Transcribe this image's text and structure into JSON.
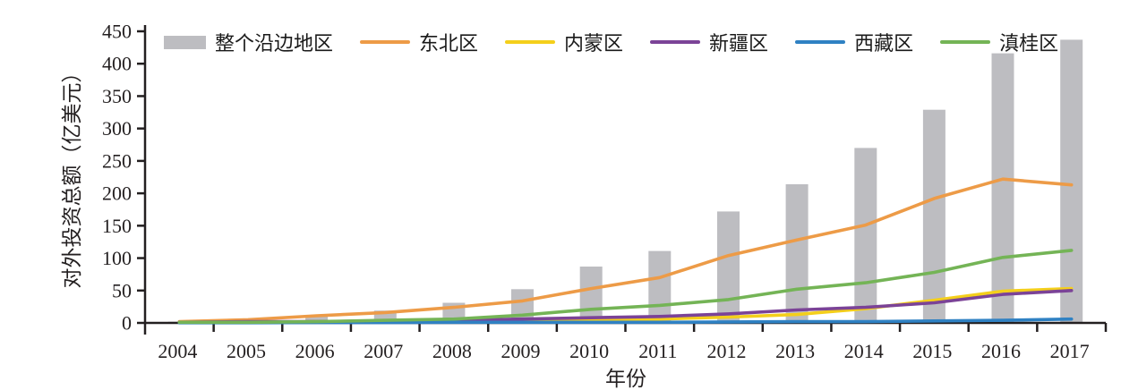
{
  "chart_data": {
    "type": "bar+line",
    "title": "",
    "xlabel": "年份",
    "ylabel": "对外投资总额（亿美元）",
    "ylim": [
      0,
      450
    ],
    "ytick_step": 50,
    "yticks": [
      0,
      50,
      100,
      150,
      200,
      250,
      300,
      350,
      400,
      450
    ],
    "grid": false,
    "legend_position": "top",
    "axis_color": "#231f20",
    "categories": [
      "2004",
      "2005",
      "2006",
      "2007",
      "2008",
      "2009",
      "2010",
      "2011",
      "2012",
      "2013",
      "2014",
      "2015",
      "2016",
      "2017"
    ],
    "series": [
      {
        "name": "整个沿边地区",
        "type": "bar",
        "color": "#bdbdc1",
        "values": [
          2,
          3,
          11,
          19,
          31,
          52,
          87,
          111,
          172,
          214,
          270,
          329,
          416,
          437
        ]
      },
      {
        "name": "东北区",
        "type": "line",
        "color": "#ed9b47",
        "values": [
          2,
          5,
          11,
          16,
          24,
          34,
          53,
          70,
          104,
          128,
          151,
          192,
          222,
          213
        ]
      },
      {
        "name": "内蒙区",
        "type": "line",
        "color": "#f4cf1b",
        "values": [
          1,
          1,
          2,
          2,
          3,
          3,
          4,
          6,
          9,
          13,
          22,
          35,
          49,
          53
        ]
      },
      {
        "name": "新疆区",
        "type": "line",
        "color": "#7b4397",
        "values": [
          1,
          2,
          2,
          3,
          4,
          6,
          8,
          10,
          14,
          20,
          24,
          31,
          44,
          50
        ]
      },
      {
        "name": "西藏区",
        "type": "line",
        "color": "#2f81c3",
        "values": [
          0.3,
          0.3,
          0.5,
          0.5,
          1,
          1,
          1,
          1,
          1.5,
          2,
          2,
          3,
          4,
          6
        ]
      },
      {
        "name": "滇桂区",
        "type": "line",
        "color": "#74b456",
        "values": [
          1,
          1,
          2,
          4,
          6,
          12,
          21,
          27,
          36,
          52,
          62,
          78,
          101,
          112
        ]
      }
    ]
  }
}
